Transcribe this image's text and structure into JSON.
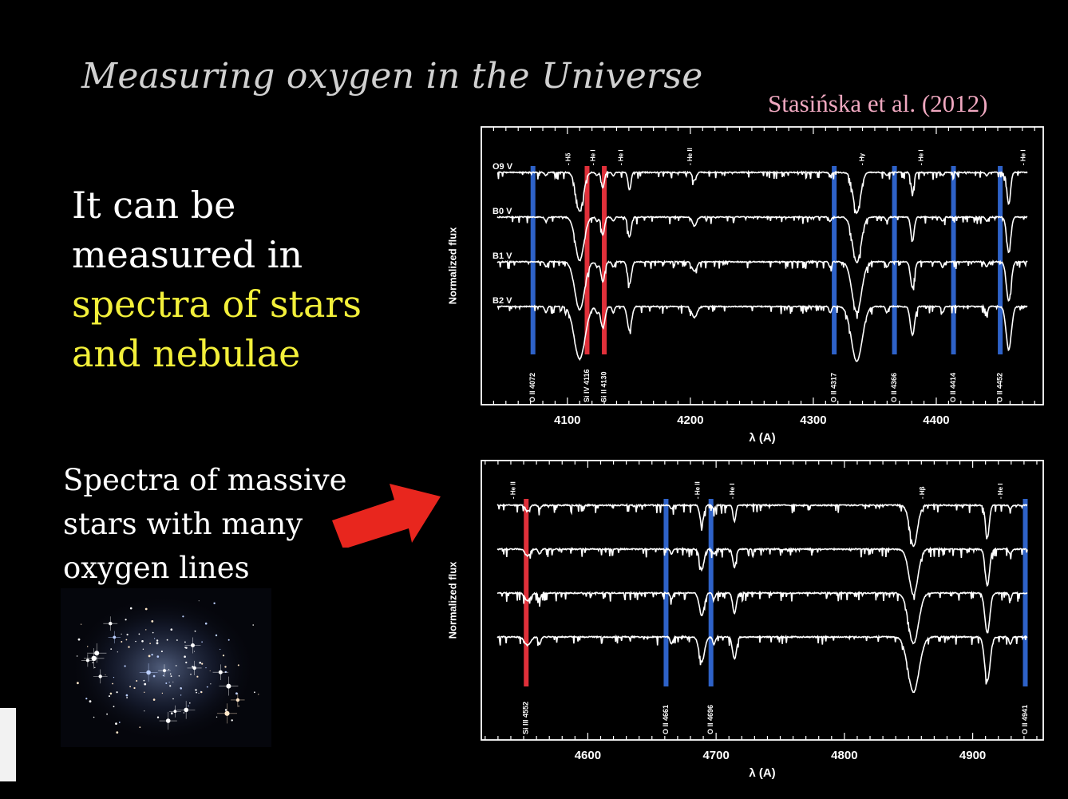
{
  "slide": {
    "title": "Measuring oxygen in the Universe",
    "citation": "Stasińska et al. (2012)",
    "main_text": {
      "line1": "It can be",
      "line2": "measured in",
      "line3": "spectra of stars",
      "line4": "and nebulae"
    },
    "sub_text": {
      "line1": "Spectra of massive",
      "line2": "stars with many",
      "line3": "oxygen lines"
    },
    "arrow_color": "#e8261e",
    "highlight_color": "#f3f03a"
  },
  "chart_data": [
    {
      "type": "line",
      "xlabel": "λ (A)",
      "ylabel": "Normalized flux",
      "xlim": [
        4030,
        4487
      ],
      "xticks": [
        4100,
        4200,
        4300,
        4400
      ],
      "series": [
        {
          "name": "O9 V",
          "offset": 0
        },
        {
          "name": "B0 V",
          "offset": 1
        },
        {
          "name": "B1 V",
          "offset": 2
        },
        {
          "name": "B2 V",
          "offset": 3
        }
      ],
      "top_line_labels": [
        {
          "x": 4101,
          "label": "Hδ"
        },
        {
          "x": 4121,
          "label": "He I"
        },
        {
          "x": 4144,
          "label": "He I"
        },
        {
          "x": 4200,
          "label": "He II"
        },
        {
          "x": 4340,
          "label": "Hγ"
        },
        {
          "x": 4388,
          "label": "He I"
        },
        {
          "x": 4471,
          "label": "He I"
        }
      ],
      "marked_lines": [
        {
          "x": 4072,
          "label": "O II 4072",
          "color": "#2e62c8"
        },
        {
          "x": 4116,
          "label": "Si IV 4116",
          "color": "#e0303a"
        },
        {
          "x": 4130,
          "label": "Si II 4130",
          "color": "#e0303a"
        },
        {
          "x": 4317,
          "label": "O II 4317",
          "color": "#2e62c8"
        },
        {
          "x": 4366,
          "label": "O II 4366",
          "color": "#2e62c8"
        },
        {
          "x": 4414,
          "label": "O II 4414",
          "color": "#2e62c8"
        },
        {
          "x": 4452,
          "label": "O II 4452",
          "color": "#2e62c8"
        }
      ],
      "absorption_lines": [
        {
          "x": 4101,
          "depth": 2.2,
          "width": 4.5
        },
        {
          "x": 4121,
          "depth": 0.9,
          "width": 1.8
        },
        {
          "x": 4144,
          "depth": 1.0,
          "width": 1.8
        },
        {
          "x": 4200,
          "depth": 0.45,
          "width": 2.2
        },
        {
          "x": 4340,
          "depth": 2.3,
          "width": 4.5
        },
        {
          "x": 4388,
          "depth": 1.2,
          "width": 1.8
        },
        {
          "x": 4471,
          "depth": 1.8,
          "width": 2.2
        }
      ]
    },
    {
      "type": "line",
      "xlabel": "λ (A)",
      "ylabel": "Normalized flux",
      "xlim": [
        4517,
        4955
      ],
      "xticks": [
        4600,
        4700,
        4800,
        4900
      ],
      "series": [
        {
          "name": "",
          "offset": 0
        },
        {
          "name": "",
          "offset": 1
        },
        {
          "name": "",
          "offset": 2
        },
        {
          "name": "",
          "offset": 3
        }
      ],
      "top_line_labels": [
        {
          "x": 4542,
          "label": "He II"
        },
        {
          "x": 4686,
          "label": "He II"
        },
        {
          "x": 4713,
          "label": "He I"
        },
        {
          "x": 4861,
          "label": "Hβ"
        },
        {
          "x": 4922,
          "label": "He I"
        }
      ],
      "marked_lines": [
        {
          "x": 4552,
          "label": "Si III 4552",
          "color": "#e0303a"
        },
        {
          "x": 4661,
          "label": "O II 4661",
          "color": "#2e62c8"
        },
        {
          "x": 4696,
          "label": "O II 4696",
          "color": "#2e62c8"
        },
        {
          "x": 4941,
          "label": "O II 4941",
          "color": "#2e62c8"
        }
      ],
      "absorption_lines": [
        {
          "x": 4542,
          "depth": 0.3,
          "width": 2.5
        },
        {
          "x": 4686,
          "depth": 0.9,
          "width": 2.2
        },
        {
          "x": 4713,
          "depth": 0.8,
          "width": 1.6
        },
        {
          "x": 4861,
          "depth": 2.0,
          "width": 4.5
        },
        {
          "x": 4922,
          "depth": 1.6,
          "width": 2.2
        }
      ]
    }
  ]
}
